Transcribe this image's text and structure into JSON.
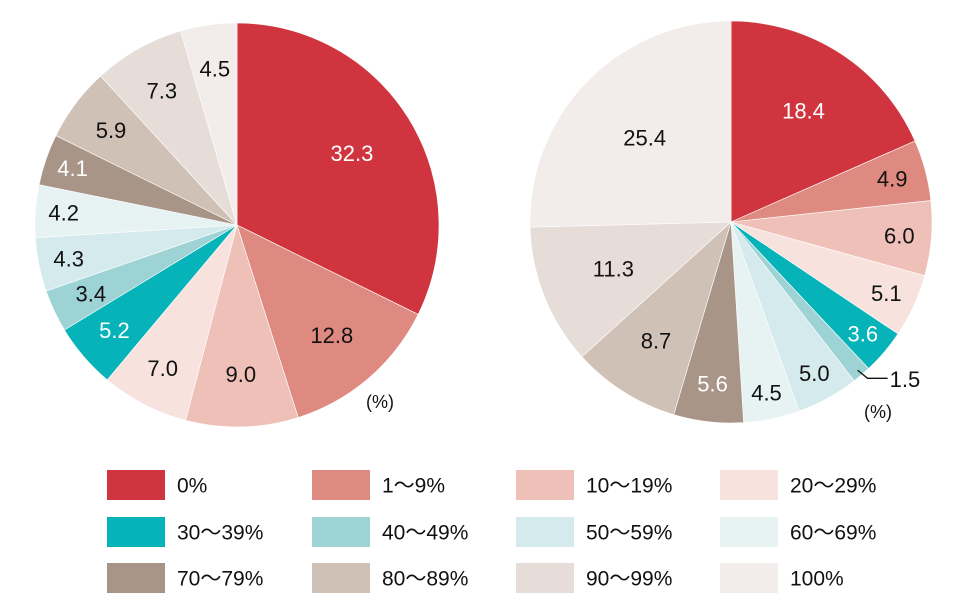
{
  "chart_data": [
    {
      "type": "pie",
      "unit_label": "(%)",
      "start": "top",
      "direction": "clockwise",
      "values": [
        32.3,
        12.8,
        9.0,
        7.0,
        5.2,
        3.4,
        4.3,
        4.2,
        4.1,
        5.9,
        7.3,
        4.5
      ],
      "labels": [
        "32.3",
        "12.8",
        "9.0",
        "7.0",
        "5.2",
        "3.4",
        "4.3",
        "4.2",
        "4.1",
        "5.9",
        "7.3",
        "4.5"
      ]
    },
    {
      "type": "pie",
      "unit_label": "(%)",
      "start": "top",
      "direction": "clockwise",
      "values": [
        18.4,
        4.9,
        6.0,
        5.1,
        3.6,
        1.5,
        5.0,
        4.5,
        5.6,
        8.7,
        11.3,
        25.4
      ],
      "labels": [
        "18.4",
        "4.9",
        "6.0",
        "5.1",
        "3.6",
        "1.5",
        "5.0",
        "4.5",
        "5.6",
        "8.7",
        "11.3",
        "25.4"
      ]
    }
  ],
  "legend": [
    {
      "label": "0%",
      "color": "#d0353f"
    },
    {
      "label": "1～9%",
      "color": "#df8a80"
    },
    {
      "label": "10～19%",
      "color": "#eec0b7"
    },
    {
      "label": "20～29%",
      "color": "#f7e2de"
    },
    {
      "label": "30～39%",
      "color": "#05b3b8"
    },
    {
      "label": "40～49%",
      "color": "#9ed3d6"
    },
    {
      "label": "50～59%",
      "color": "#d5eaec"
    },
    {
      "label": "60～69%",
      "color": "#e7f2f3"
    },
    {
      "label": "70～79%",
      "color": "#a89587"
    },
    {
      "label": "80～89%",
      "color": "#d0c1b7"
    },
    {
      "label": "90～99%",
      "color": "#e6dcd8"
    },
    {
      "label": "100%",
      "color": "#f2ecea"
    }
  ],
  "label_colors": {
    "light": "#ffffff",
    "dark": "#111111",
    "light_for_categories": [
      0,
      4,
      8
    ]
  }
}
